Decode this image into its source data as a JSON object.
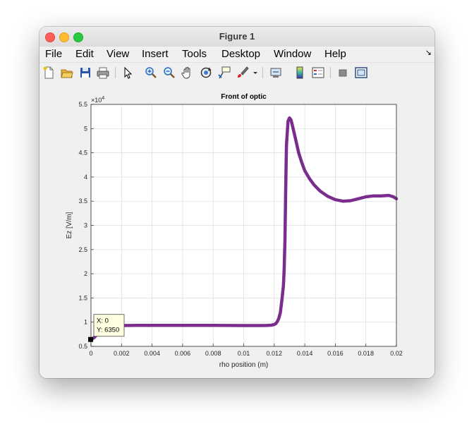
{
  "window": {
    "title": "Figure 1"
  },
  "menu": [
    {
      "label": "File"
    },
    {
      "label": "Edit"
    },
    {
      "label": "View"
    },
    {
      "label": "Insert"
    },
    {
      "label": "Tools"
    },
    {
      "label": "Desktop"
    },
    {
      "label": "Window"
    },
    {
      "label": "Help"
    }
  ],
  "toolbar": [
    {
      "icon": "new-figure-icon"
    },
    {
      "icon": "open-file-icon"
    },
    {
      "icon": "save-icon"
    },
    {
      "icon": "print-icon"
    },
    {
      "icon": "edit-plot-pointer-icon"
    },
    {
      "icon": "zoom-in-icon"
    },
    {
      "icon": "zoom-out-icon"
    },
    {
      "icon": "pan-hand-icon"
    },
    {
      "icon": "rotate-3d-icon"
    },
    {
      "icon": "data-cursor-icon"
    },
    {
      "icon": "brush-icon"
    },
    {
      "icon": "brush-dropdown-icon"
    },
    {
      "icon": "link-plot-icon"
    },
    {
      "icon": "insert-colorbar-icon"
    },
    {
      "icon": "insert-legend-icon"
    },
    {
      "icon": "hide-plot-tools-icon"
    },
    {
      "icon": "show-plot-tools-icon"
    }
  ],
  "chart_data": {
    "type": "line",
    "title": "Front of optic",
    "xlabel": "rho position (m)",
    "ylabel": "Ez [V/m]",
    "y_exponent_label": "×10",
    "y_exponent_power": "4",
    "xlim": [
      0,
      0.02
    ],
    "ylim": [
      5000,
      55000
    ],
    "xticks": [
      0,
      0.002,
      0.004,
      0.006,
      0.008,
      0.01,
      0.012,
      0.014,
      0.016,
      0.018,
      0.02
    ],
    "xtick_labels": [
      "0",
      "0.002",
      "0.004",
      "0.006",
      "0.008",
      "0.01",
      "0.012",
      "0.014",
      "0.016",
      "0.018",
      "0.02"
    ],
    "yticks": [
      5000,
      10000,
      15000,
      20000,
      25000,
      30000,
      35000,
      40000,
      45000,
      50000,
      55000
    ],
    "ytick_labels": [
      "0.5",
      "1",
      "1.5",
      "2",
      "2.5",
      "3",
      "3.5",
      "4",
      "4.5",
      "5",
      "5.5"
    ],
    "grid": true,
    "color": "#7b2d8e",
    "series": [
      {
        "x": [
          0,
          0.0002,
          0.0004,
          0.0006,
          0.0008,
          0.001,
          0.0015,
          0.002,
          0.003,
          0.004,
          0.005,
          0.006,
          0.007,
          0.008,
          0.009,
          0.01,
          0.0105,
          0.011,
          0.0115,
          0.0118,
          0.012,
          0.0121,
          0.0122,
          0.0123,
          0.0124,
          0.0125,
          0.0126,
          0.01265,
          0.0127,
          0.01275,
          0.0128,
          0.0129,
          0.013,
          0.0131,
          0.0132,
          0.0134,
          0.0136,
          0.0138,
          0.014,
          0.0143,
          0.0146,
          0.015,
          0.0155,
          0.016,
          0.0165,
          0.017,
          0.0175,
          0.018,
          0.0185,
          0.019,
          0.0195,
          0.0198,
          0.02
        ],
        "y": [
          6350,
          6800,
          7500,
          8200,
          8700,
          9000,
          9200,
          9300,
          9350,
          9350,
          9350,
          9350,
          9340,
          9330,
          9320,
          9300,
          9300,
          9300,
          9320,
          9380,
          9500,
          9700,
          10100,
          10800,
          12000,
          14500,
          17500,
          21000,
          27000,
          37000,
          46500,
          51500,
          52200,
          51800,
          50500,
          47800,
          45000,
          43000,
          41300,
          39700,
          38400,
          37100,
          36000,
          35300,
          35000,
          35100,
          35500,
          35900,
          36100,
          36100,
          36200,
          35900,
          35500
        ]
      }
    ],
    "datatip": {
      "x_label": "X: 0",
      "y_label": "Y: 6350",
      "x": 0,
      "y": 6350
    }
  }
}
